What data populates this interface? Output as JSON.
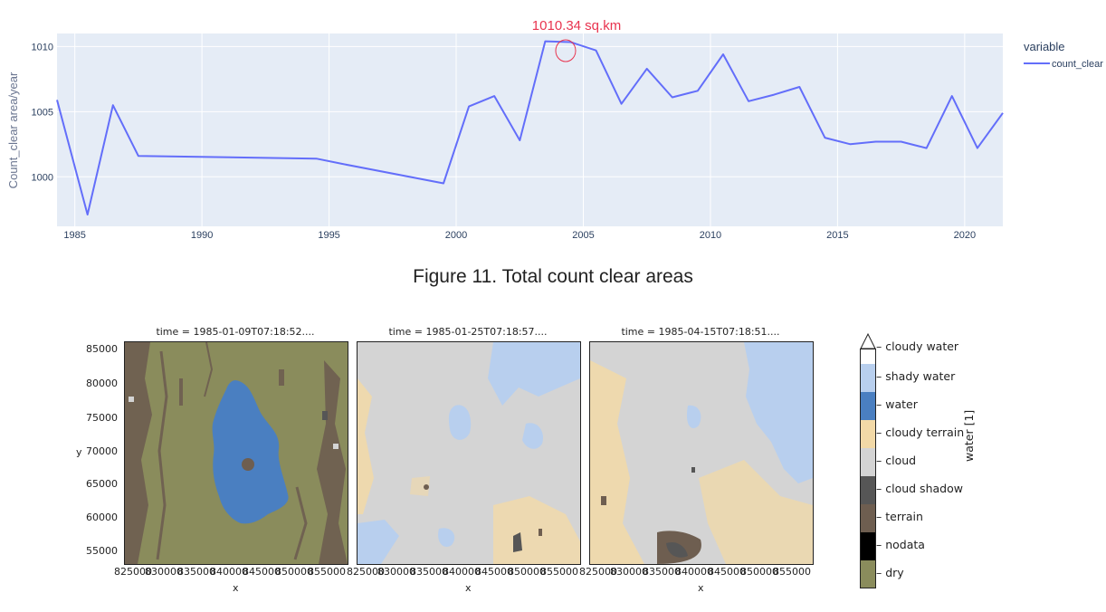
{
  "figure11": {
    "annotation": "1010.34 sq.km",
    "caption": "Figure 11. Total count clear areas",
    "chart_data": {
      "type": "line",
      "ylabel": "Count_clear area/year",
      "xlabel": "",
      "legend_title": "variable",
      "legend_position": "right",
      "grid": true,
      "xlim": [
        1984.3,
        2021.5
      ],
      "ylim": [
        996.2,
        1011.0
      ],
      "x_ticks": [
        1985,
        1990,
        1995,
        2000,
        2005,
        2010,
        2015,
        2020
      ],
      "x_tick_labels": [
        "1985",
        "1990",
        "1995",
        "2000",
        "2005",
        "2010",
        "2015",
        "2020"
      ],
      "y_ticks": [
        1000,
        1005,
        1010
      ],
      "y_tick_labels": [
        "1000",
        "1005",
        "1010"
      ],
      "series": [
        {
          "name": "count_clear",
          "color": "#636efa",
          "x": [
            1984.3,
            1985.5,
            1986.5,
            1987.5,
            1994.5,
            1995.5,
            1999.5,
            2000.5,
            2001.5,
            2002.5,
            2003.5,
            2004.5,
            2005.5,
            2006.5,
            2007.5,
            2008.5,
            2009.5,
            2010.5,
            2011.5,
            2012.5,
            2013.5,
            2014.5,
            2015.5,
            2016.5,
            2017.5,
            2018.5,
            2019.5,
            2020.5,
            2021.5
          ],
          "y": [
            1005.9,
            997.1,
            1005.5,
            1001.6,
            1001.4,
            1001.0,
            999.5,
            1005.4,
            1006.2,
            1002.8,
            1010.4,
            1010.34,
            1009.7,
            1005.6,
            1008.3,
            1006.1,
            1006.6,
            1009.4,
            1005.8,
            1006.3,
            1006.9,
            1003.0,
            1002.5,
            1002.7,
            1002.7,
            1002.2,
            1006.2,
            1002.2,
            1004.9
          ]
        }
      ]
    }
  },
  "figure12": {
    "maps": [
      {
        "title": "time = 1985-01-09T07:18:52....",
        "variant": "dry"
      },
      {
        "title": "time = 1985-01-25T07:18:57....",
        "variant": "cloud"
      },
      {
        "title": "time = 1985-04-15T07:18:51....",
        "variant": "cloud2"
      }
    ],
    "y_label": "y",
    "x_label": "x",
    "y_tick_labels": [
      "85000",
      "80000",
      "75000",
      "70000",
      "65000",
      "60000",
      "55000"
    ],
    "x_tick_labels": [
      "825000",
      "830000",
      "835000",
      "840000",
      "845000",
      "850000",
      "855000"
    ],
    "colorbar_label": "water [1]",
    "classes": [
      {
        "label": "cloudy water",
        "color": "#ffffff"
      },
      {
        "label": "shady water",
        "color": "#b8cfee"
      },
      {
        "label": "water",
        "color": "#4a7fc1"
      },
      {
        "label": "cloudy terrain",
        "color": "#f2d9a7"
      },
      {
        "label": "cloud",
        "color": "#d4d4d4"
      },
      {
        "label": "cloud shadow",
        "color": "#565656"
      },
      {
        "label": "terrain",
        "color": "#6e5e50"
      },
      {
        "label": "nodata",
        "color": "#000000"
      },
      {
        "label": "dry",
        "color": "#8a8c5c"
      }
    ]
  }
}
